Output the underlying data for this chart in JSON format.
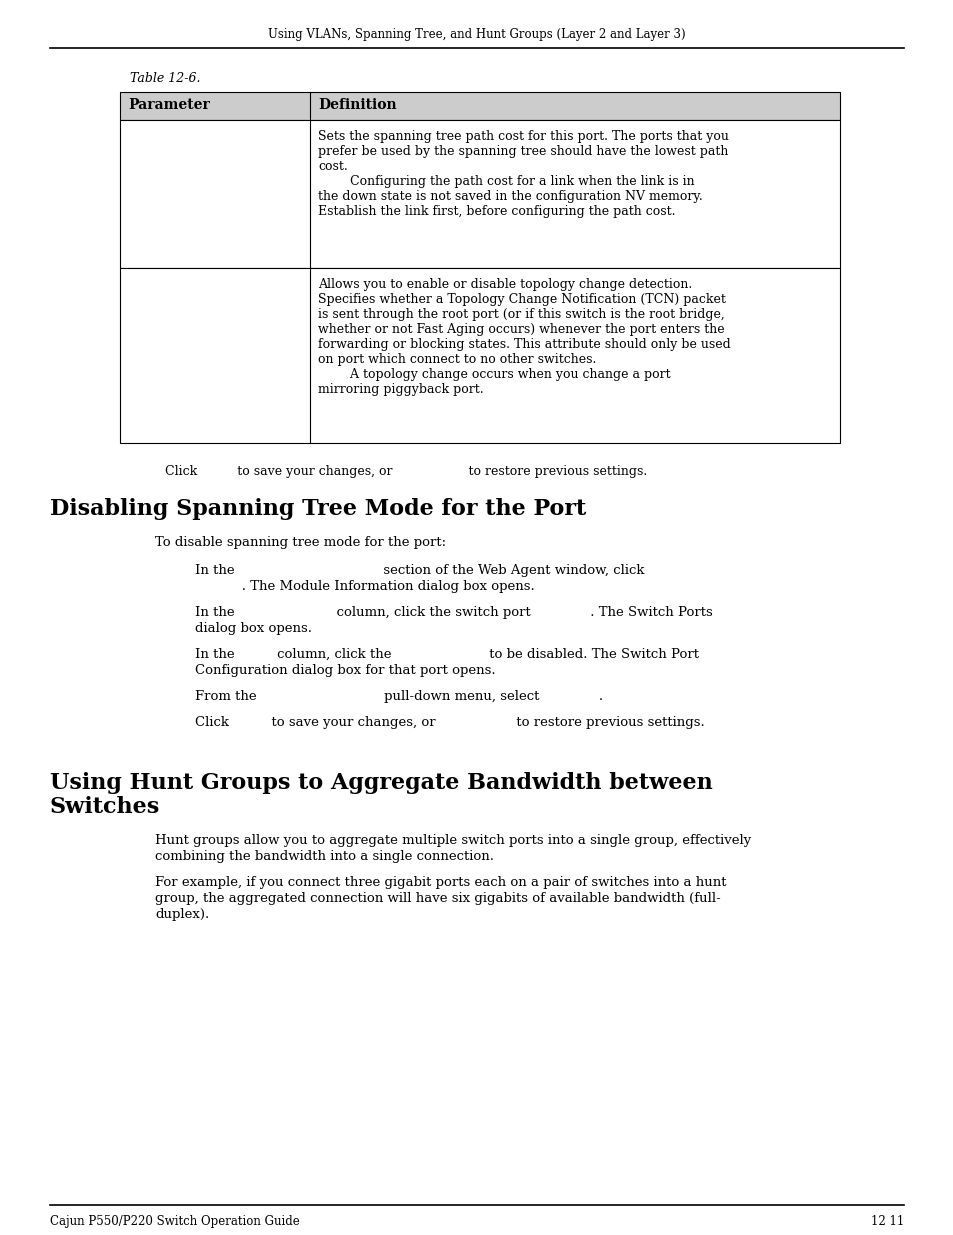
{
  "page_bg": "#ffffff",
  "header_text": "Using VLANs, Spanning Tree, and Hunt Groups (Layer 2 and Layer 3)",
  "table_caption": "Table 12-6.",
  "table_header_col1": "Parameter",
  "table_header_col2": "Definition",
  "table_row1_col2_lines": [
    "Sets the spanning tree path cost for this port. The ports that you",
    "prefer be used by the spanning tree should have the lowest path",
    "cost.",
    "        Configuring the path cost for a link when the link is in",
    "the down state is not saved in the configuration NV memory.",
    "Establish the link first, before configuring the path cost."
  ],
  "table_row2_col2_lines": [
    "Allows you to enable or disable topology change detection.",
    "Specifies whether a Topology Change Notification (TCN) packet",
    "is sent through the root port (or if this switch is the root bridge,",
    "whether or not Fast Aging occurs) whenever the port enters the",
    "forwarding or blocking states. This attribute should only be used",
    "on port which connect to no other switches.",
    "        A topology change occurs when you change a port",
    "mirroring piggyback port."
  ],
  "click_line": "Click          to save your changes, or                   to restore previous settings.",
  "section1_title": "Disabling Spanning Tree Mode for the Port",
  "section1_intro": "To disable spanning tree mode for the port:",
  "section1_step1a": "In the                                   section of the Web Agent window, click",
  "section1_step1b": "           . The Module Information dialog box opens.",
  "section1_step2a": "In the                        column, click the switch port              . The Switch Ports",
  "section1_step2b": "dialog box opens.",
  "section1_step3a": "In the          column, click the                       to be disabled. The Switch Port",
  "section1_step3b": "Configuration dialog box for that port opens.",
  "section1_step4": "From the                              pull-down menu, select              .",
  "section1_step5": "Click          to save your changes, or                   to restore previous settings.",
  "section2_title1": "Using Hunt Groups to Aggregate Bandwidth between",
  "section2_title2": "Switches",
  "section2_para1a": "Hunt groups allow you to aggregate multiple switch ports into a single group, effectively",
  "section2_para1b": "combining the bandwidth into a single connection.",
  "section2_para2a": "For example, if you connect three gigabit ports each on a pair of switches into a hunt",
  "section2_para2b": "group, the aggregated connection will have six gigabits of available bandwidth (full-",
  "section2_para2c": "duplex).",
  "footer_left": "Cajun P550/P220 Switch Operation Guide",
  "footer_right": "12 11"
}
